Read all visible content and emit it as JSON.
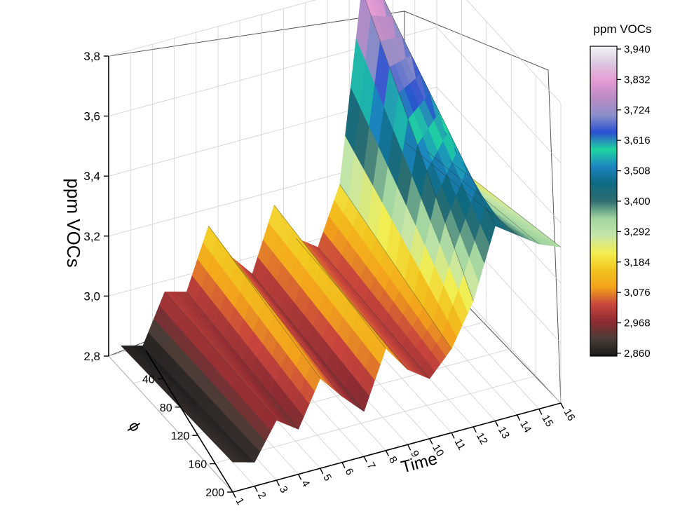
{
  "chart_data": {
    "type": "surface-3d",
    "title": "",
    "zlabel": "ppm VOCs",
    "xlabel": "Time",
    "ylabel": "ϕ",
    "zlim": [
      2.8,
      3.8
    ],
    "z_ticks": [
      "2,8",
      "3,0",
      "3,2",
      "3,4",
      "3,6",
      "3,8"
    ],
    "x_ticks": [
      "1",
      "2",
      "3",
      "4",
      "5",
      "6",
      "7",
      "8",
      "9",
      "10",
      "11",
      "12",
      "13",
      "14",
      "15",
      "16"
    ],
    "y_ticks": [
      "40",
      "80",
      "120",
      "160",
      "200"
    ],
    "grid": true,
    "colorbar": {
      "title": "ppm VOCs",
      "labels": [
        "3,940",
        "3,832",
        "3,724",
        "3,616",
        "3,508",
        "3,400",
        "3,292",
        "3,184",
        "3,076",
        "2,968",
        "2,860"
      ],
      "colors": [
        "#f2f4f6",
        "#dcc7e0",
        "#e59bd3",
        "#b98bc6",
        "#8b8fc8",
        "#2a4fd0",
        "#1fd4a0",
        "#1b84c0",
        "#0f6a80",
        "#2f6e70",
        "#9fd4a0",
        "#c6e6a8",
        "#f2ee50",
        "#f2c51e",
        "#f3a21c",
        "#c8453c",
        "#8e2c33",
        "#4a3c36",
        "#1a1a1a"
      ]
    },
    "x": [
      1,
      2,
      3,
      4,
      5,
      6,
      7,
      8,
      9,
      10,
      11,
      12,
      13,
      14,
      15,
      16
    ],
    "y_range": [
      0,
      200
    ],
    "series": [
      {
        "y": 20,
        "values": [
          2.88,
          2.86,
          3.02,
          3.0,
          3.2,
          3.08,
          3.0,
          3.21,
          3.08,
          3.03,
          3.22,
          3.85,
          3.8,
          3.3,
          3.25,
          3.2
        ]
      },
      {
        "y": 200,
        "values": [
          2.9,
          2.88,
          3.0,
          2.95,
          3.1,
          3.02,
          2.95,
          3.14,
          3.05,
          3.0,
          3.08,
          3.22,
          3.45,
          3.4,
          3.35,
          3.32
        ]
      }
    ]
  }
}
